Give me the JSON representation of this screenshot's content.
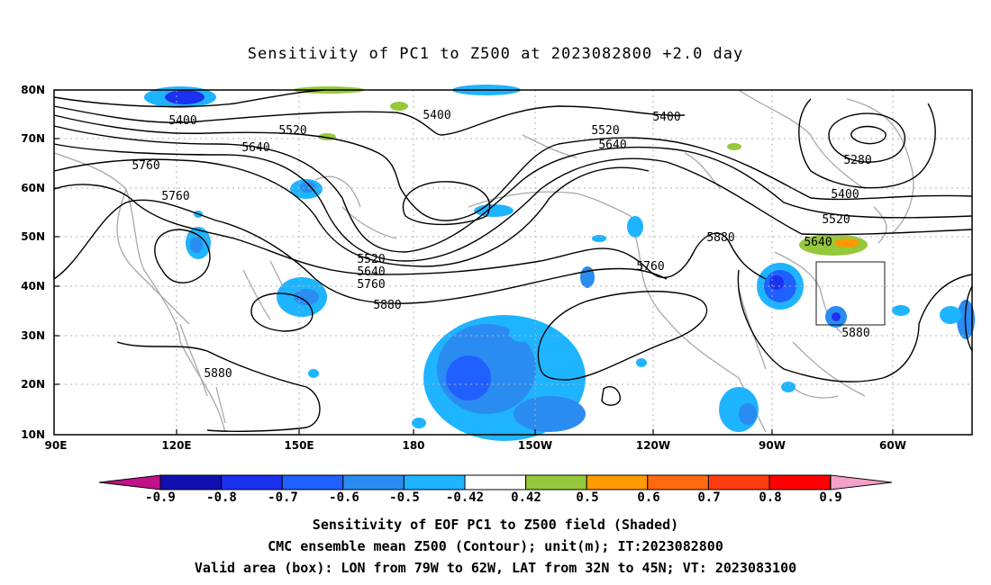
{
  "title": "Sensitivity of PC1 to Z500 at 2023082800 +2.0 day",
  "map": {
    "lat_ticks": [
      "80N",
      "70N",
      "60N",
      "50N",
      "40N",
      "30N",
      "20N",
      "10N"
    ],
    "lon_ticks": [
      "90E",
      "120E",
      "150E",
      "180",
      "150W",
      "120W",
      "90W",
      "60W"
    ],
    "contour_labels": [
      "5400",
      "5400",
      "5400",
      "5520",
      "5520",
      "5520",
      "5520",
      "5640",
      "5640",
      "5640",
      "5640",
      "5760",
      "5760",
      "5760",
      "5760",
      "5880",
      "5880",
      "5880",
      "5880",
      "5280",
      "5400"
    ],
    "valid_box": {
      "lon_from": "79W",
      "lon_to": "62W",
      "lat_from": "32N",
      "lat_to": "45N"
    }
  },
  "colorbar": {
    "labels": [
      "-0.9",
      "-0.8",
      "-0.7",
      "-0.6",
      "-0.5",
      "-0.42",
      "0.42",
      "0.5",
      "0.6",
      "0.7",
      "0.8",
      "0.9"
    ],
    "colors": [
      "#1010b0",
      "#1c30f0",
      "#2060ff",
      "#2a8cf0",
      "#1eb4ff",
      "#ffffff",
      "#96c83c",
      "#ff9a00",
      "#ff6a10",
      "#ff3c10",
      "#ff0000"
    ],
    "end_low": "#c0108a",
    "end_high": "#f5a0c8"
  },
  "captions": [
    "Sensitivity of EOF PC1 to Z500 field (Shaded)",
    "CMC ensemble mean Z500 (Contour); unit(m); IT:2023082800",
    "Valid area (box): LON from 79W to 62W, LAT from 32N to 45N; VT: 2023083100"
  ]
}
